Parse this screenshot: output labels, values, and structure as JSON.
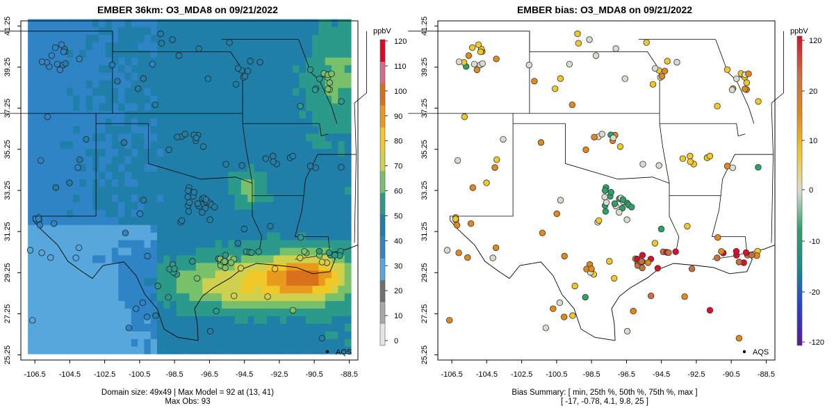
{
  "left_panel": {
    "title": "EMBER 36km: O3_MDA8 on 09/21/2022",
    "colorbar_label": "ppbV",
    "colorbar_ticks": [
      "0",
      "10",
      "20",
      "30",
      "40",
      "50",
      "60",
      "70",
      "80",
      "90",
      "100",
      "110",
      "120"
    ],
    "legend_label": "AQS",
    "footer_line1": "Domain size: 49x49 | Max Model = 92 at (13, 41)",
    "footer_line2": "Max Obs: 93"
  },
  "right_panel": {
    "title": "EMBER bias: O3_MDA8 on 09/21/2022",
    "colorbar_label": "ppbV",
    "colorbar_ticks": [
      "-120",
      "-20",
      "-10",
      "0",
      "10",
      "20",
      "120"
    ],
    "legend_label": "AQS",
    "footer_line1": "Bias Summary: [ min, 25th %, 50th %, 75th %, max ]",
    "footer_line2": "[ -17,   -0.78,   4.1,   9.8,   25 ]"
  },
  "axes": {
    "x_ticks": [
      "-106.5",
      "-104.5",
      "-102.5",
      "-100.5",
      "-98.5",
      "-96.5",
      "-94.5",
      "-92.5",
      "-90.5",
      "-88.5"
    ],
    "y_ticks": [
      "25.25",
      "27.25",
      "29.25",
      "31.25",
      "33.25",
      "35.25",
      "37.25",
      "39.25",
      "41.25"
    ],
    "x_range": [
      -107.3,
      -88.0
    ],
    "y_range": [
      25.0,
      41.5
    ]
  },
  "colors": {
    "model_scale": [
      "#e6e6e6",
      "#a8a8a8",
      "#6f6f6f",
      "#57a7dc",
      "#2f84c6",
      "#1f7fa8",
      "#2b9a8a",
      "#79c06a",
      "#cfd14e",
      "#f0c827",
      "#e99a1c",
      "#d9701c",
      "#d96a86",
      "#e8002b"
    ],
    "bias_scale": [
      "#5a1a8c",
      "#2a3fd6",
      "#1a8a8a",
      "#2ea06a",
      "#d8dccf",
      "#f0c827",
      "#e08a1c",
      "#c87040",
      "#d8102b"
    ]
  }
}
